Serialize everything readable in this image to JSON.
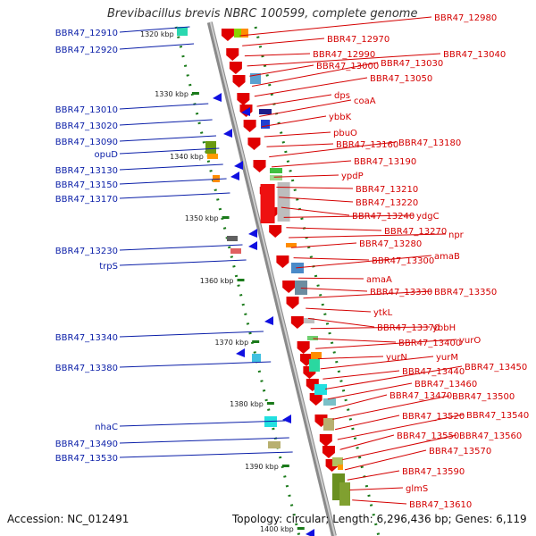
{
  "title": "Brevibacillus brevis NBRC 100599, complete genome",
  "accession": "Accession: NC_012491",
  "summary": "Topology: circular; Length: 6,296,436 bp; Genes: 6,119",
  "colors": {
    "left_label": "#0a1ea8",
    "right_label": "#d40000",
    "ruler": "#1a7a1a",
    "axis": "#8a8a8a"
  },
  "kbp_ticks": [
    "1320 kbp",
    "1330 kbp",
    "1340 kbp",
    "1350 kbp",
    "1360 kbp",
    "1370 kbp",
    "1380 kbp",
    "1390 kbp",
    "1400 kbp"
  ],
  "left_genes": [
    "BBR47_12910",
    "BBR47_12920",
    "BBR47_13010",
    "BBR47_13020",
    "BBR47_13090",
    "opuD",
    "BBR47_13130",
    "BBR47_13150",
    "BBR47_13170",
    "BBR47_13230",
    "trpS",
    "BBR47_13340",
    "BBR47_13380",
    "nhaC",
    "BBR47_13490",
    "BBR47_13530"
  ],
  "right_genes": [
    "BBR47_12980",
    "BBR47_12970",
    "BBR47_12990",
    "BBR47_13040",
    "BBR47_13000",
    "BBR47_13030",
    "BBR47_13050",
    "dps",
    "coaA",
    "ybbK",
    "pbuO",
    "BBR47_13160",
    "BBR47_13180",
    "BBR47_13190",
    "ypdP",
    "BBR47_13210",
    "BBR47_13220",
    "BBR47_13240",
    "ydgC",
    "BBR47_13270",
    "npr",
    "BBR47_13280",
    "BBR47_13300",
    "amaB",
    "amaA",
    "BBR47_13330",
    "BBR47_13350",
    "ytkL",
    "BBR47_13370",
    "ybbH",
    "BBR47_13400",
    "yurO",
    "yurN",
    "yurM",
    "BBR47_13440",
    "BBR47_13450",
    "BBR47_13460",
    "BBR47_13470",
    "BBR47_13500",
    "BBR47_13520",
    "BBR47_13540",
    "BBR47_13550",
    "BBR47_13560",
    "BBR47_13570",
    "BBR47_13590",
    "glmS",
    "BBR47_13610"
  ]
}
